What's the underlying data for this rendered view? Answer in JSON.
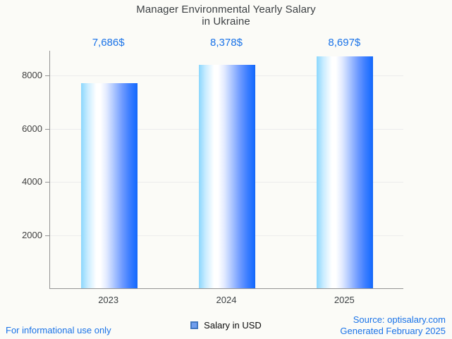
{
  "title": {
    "line1": "Manager Environmental Yearly Salary",
    "line2": "in Ukraine"
  },
  "chart_data": {
    "type": "bar",
    "title": "Manager Environmental Yearly Salary in Ukraine",
    "categories": [
      "2023",
      "2024",
      "2025"
    ],
    "values": [
      7686,
      8378,
      8697
    ],
    "value_labels": [
      "7,686$",
      "8,378$",
      "8,697$"
    ],
    "series": [
      {
        "name": "Salary in USD",
        "values": [
          7686,
          8378,
          8697
        ]
      }
    ],
    "xlabel": "",
    "ylabel": "",
    "yticks": [
      2000,
      4000,
      6000,
      8000
    ],
    "ylim": [
      0,
      8924
    ],
    "grid": true,
    "legend_position": "bottom",
    "bar_gradient": [
      "#8bd7fd",
      "#ffffff",
      "#1a6dff"
    ]
  },
  "legend": {
    "label": "Salary in USD",
    "swatch_fill": "#6f9ded",
    "swatch_border": "#4278c0"
  },
  "footer": {
    "left": "For informational use only",
    "source": "Source: optisalary.com",
    "generated": "Generated February 2025"
  },
  "colors": {
    "accent_blue": "#1a73e8",
    "title_gray": "#3c4043",
    "axis_gray": "#949494",
    "gridline": "#ececec",
    "background": "#fbfbf7"
  }
}
